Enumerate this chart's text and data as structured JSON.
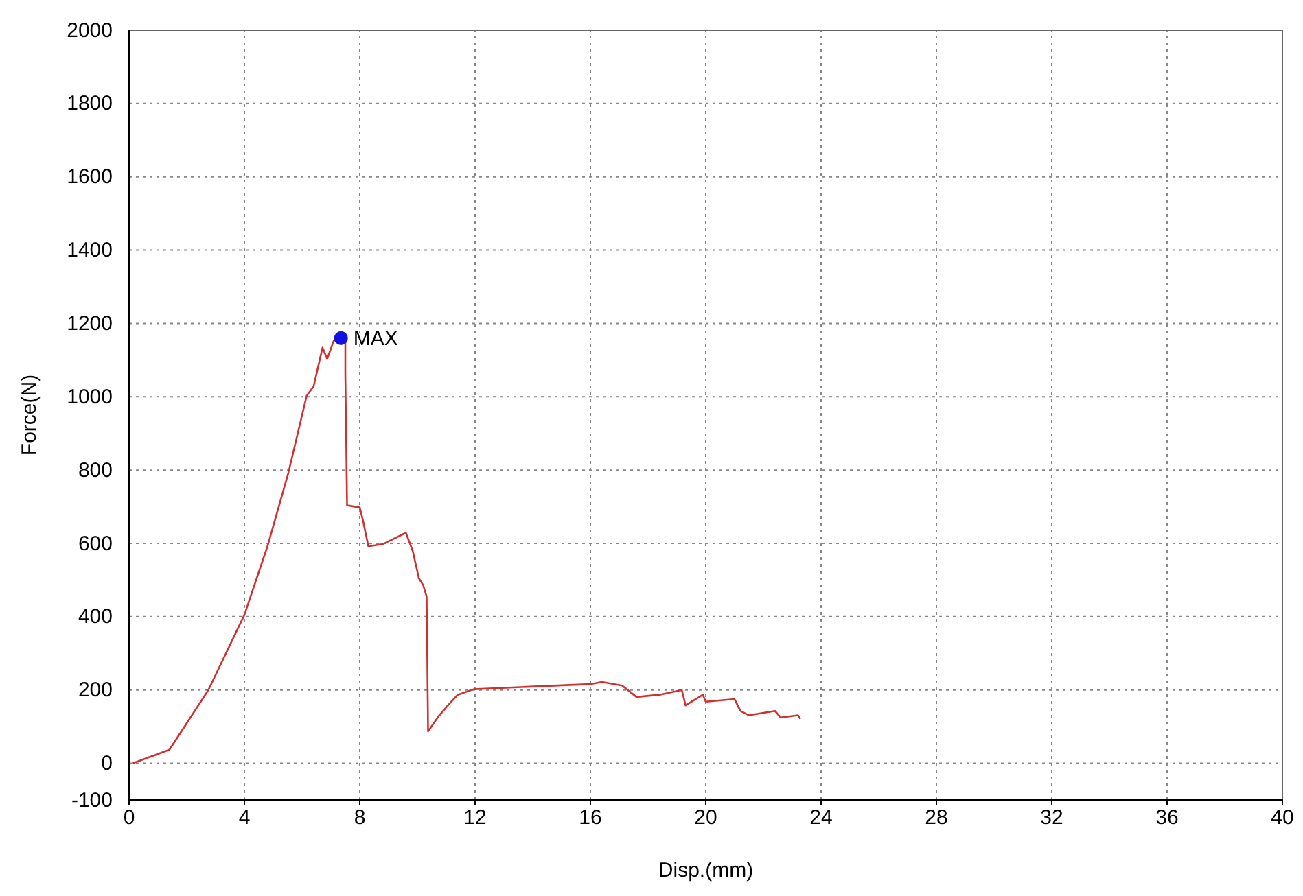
{
  "chart_data": {
    "type": "line",
    "xlabel": "Disp.(mm)",
    "ylabel": "Force(N)",
    "xlim": [
      0,
      40
    ],
    "xticks": [
      0,
      4,
      8,
      12,
      16,
      20,
      24,
      28,
      32,
      36,
      40
    ],
    "ylim": [
      -100,
      2000
    ],
    "yticks": [
      -100,
      0,
      200,
      400,
      600,
      800,
      1000,
      1200,
      1400,
      1600,
      1800,
      2000
    ],
    "grid": true,
    "series": [
      {
        "color": "#d03030",
        "x": [
          0.13,
          1.4,
          2.75,
          4.0,
          4.8,
          5.52,
          6.16,
          6.4,
          6.71,
          6.87,
          7.1,
          7.35,
          7.5,
          7.5,
          7.56,
          8.0,
          8.1,
          8.3,
          8.8,
          9.6,
          9.84,
          10.05,
          10.2,
          10.32,
          10.37,
          10.76,
          11.08,
          11.4,
          11.95,
          13.9,
          15.99,
          16.4,
          17.1,
          17.6,
          18.4,
          19.17,
          19.3,
          19.9,
          20.0,
          21.0,
          21.2,
          21.5,
          22.4,
          22.6,
          23.2,
          23.28
        ],
        "values": [
          0,
          37,
          200,
          405,
          592,
          791,
          1003,
          1028,
          1134,
          1103,
          1153,
          1160,
          1160,
          1065,
          704,
          698,
          667,
          592,
          598,
          629,
          579,
          505,
          486,
          455,
          87,
          131,
          160,
          187,
          202,
          209,
          216,
          222,
          212,
          181,
          187,
          200,
          158,
          187,
          168,
          175,
          143,
          131,
          143,
          125,
          131,
          121
        ]
      },
      {
        "type": "scatter",
        "color": "#1010e0",
        "marker": "circle",
        "x": [
          7.35
        ],
        "values": [
          1160
        ]
      }
    ],
    "annotations": [
      {
        "text": "MAX",
        "x": 7.35,
        "y": 1160
      }
    ]
  }
}
